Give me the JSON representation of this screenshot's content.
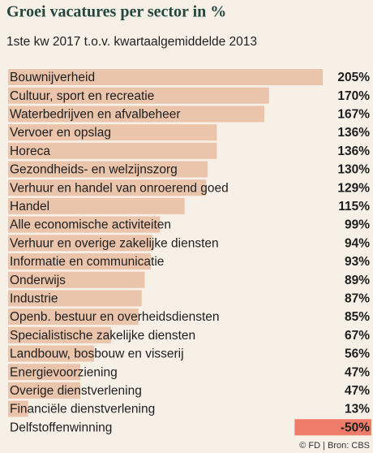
{
  "chart_data": {
    "type": "bar",
    "orientation": "horizontal",
    "title": "Groei vacatures per sector in %",
    "subtitle": "1ste kw 2017 t.o.v. kwartaalgemiddelde 2013",
    "footer": "© FD | Bron: CBS",
    "color": "#eac4ab",
    "negative_color": "#ef7b6b",
    "categories": [
      "Bouwnijverheid",
      "Cultuur, sport en recreatie",
      "Waterbedrijven en afvalbeheer",
      "Vervoer en opslag",
      "Horeca",
      "Gezondheids- en welzijnszorg",
      "Verhuur en handel van onroerend goed",
      "Handel",
      "Alle economische activiteiten",
      "Verhuur en overige zakelijke diensten",
      "Informatie en communicatie",
      "Onderwijs",
      "Industrie",
      "Openb. bestuur en overheidsdiensten",
      "Specialistische zakelijke diensten",
      "Landbouw, bosbouw en visserij",
      "Energievoorziening",
      "Overige dienstverlening",
      "Financiële dienstverlening",
      "Delfstoffenwinning"
    ],
    "values": [
      205,
      170,
      167,
      136,
      136,
      130,
      129,
      115,
      99,
      94,
      93,
      89,
      87,
      85,
      67,
      56,
      47,
      47,
      13,
      -50
    ],
    "value_labels": [
      "205%",
      "170%",
      "167%",
      "136%",
      "136%",
      "130%",
      "129%",
      "115%",
      "99%",
      "94%",
      "93%",
      "89%",
      "87%",
      "85%",
      "67%",
      "56%",
      "47%",
      "47%",
      "13%",
      "-50%"
    ]
  }
}
